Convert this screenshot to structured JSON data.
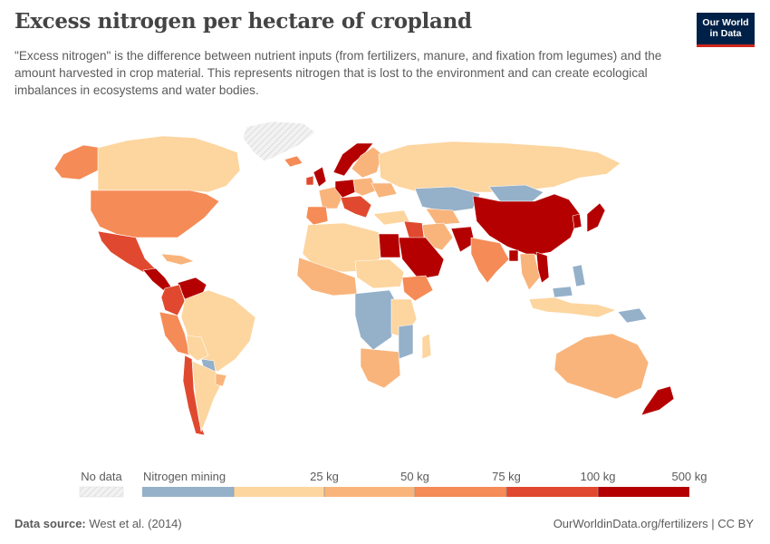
{
  "header": {
    "title": "Excess nitrogen per hectare of cropland",
    "subtitle": "\"Excess nitrogen\" is the difference between nutrient inputs (from fertilizers, manure, and fixation from legumes) and the amount harvested in crop material. This represents nitrogen that is lost to the environment and can create ecological imbalances in ecosystems and water bodies."
  },
  "logo": {
    "line1": "Our World",
    "line2": "in Data",
    "bg_color": "#002147",
    "accent_color": "#ce261e"
  },
  "legend": {
    "no_data_label": "No data",
    "bins": [
      {
        "label": "Nitrogen mining",
        "color": "#95b0c9"
      },
      {
        "label": "25 kg",
        "color": "#fdd59f"
      },
      {
        "label": "50 kg",
        "color": "#f9b47b"
      },
      {
        "label": "75 kg",
        "color": "#f58b56"
      },
      {
        "label": "100 kg",
        "color": "#e0492f"
      },
      {
        "label": "500 kg",
        "color": "#b40000"
      }
    ]
  },
  "map_colors": {
    "no_data": "#e8e8e8",
    "mining": "#95b0c9",
    "c0_25": "#fdd59f",
    "c25_50": "#f9b47b",
    "c50_75": "#f58b56",
    "c75_100": "#e0492f",
    "c100_500": "#b40000"
  },
  "footer": {
    "source_label": "Data source:",
    "source_value": "West et al. (2014)",
    "url": "OurWorldinData.org/fertilizers | CC BY"
  }
}
